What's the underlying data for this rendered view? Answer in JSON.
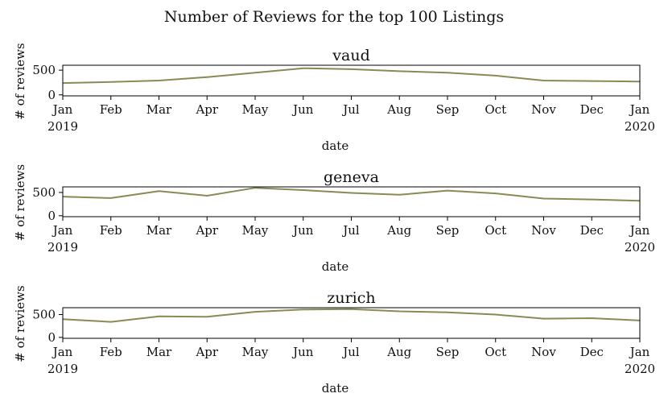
{
  "figure_title": "Number of Reviews for the top 100 Listings",
  "colors": {
    "line": "#8a8a55",
    "axes": "#000000",
    "background": "#ffffff"
  },
  "chart_data": [
    {
      "type": "line",
      "title": "vaud",
      "xlabel": "date",
      "ylabel": "# of reviews",
      "x": [
        "2019-01",
        "2019-02",
        "2019-03",
        "2019-04",
        "2019-05",
        "2019-06",
        "2019-07",
        "2019-08",
        "2019-09",
        "2019-10",
        "2019-11",
        "2019-12",
        "2020-01"
      ],
      "values": [
        240,
        260,
        290,
        360,
        450,
        540,
        520,
        480,
        450,
        390,
        290,
        280,
        270
      ],
      "xticks": [
        "Jan\n2019",
        "Feb",
        "Mar",
        "Apr",
        "May",
        "Jun",
        "Jul",
        "Aug",
        "Sep",
        "Oct",
        "Nov",
        "Dec",
        "Jan\n2020"
      ],
      "yticks": [
        0,
        500
      ],
      "ylim": [
        -20,
        600
      ],
      "grid": false
    },
    {
      "type": "line",
      "title": "geneva",
      "xlabel": "date",
      "ylabel": "# of reviews",
      "x": [
        "2019-01",
        "2019-02",
        "2019-03",
        "2019-04",
        "2019-05",
        "2019-06",
        "2019-07",
        "2019-08",
        "2019-09",
        "2019-10",
        "2019-11",
        "2019-12",
        "2020-01"
      ],
      "values": [
        410,
        380,
        530,
        430,
        600,
        550,
        490,
        450,
        540,
        480,
        370,
        350,
        320
      ],
      "xticks": [
        "Jan\n2019",
        "Feb",
        "Mar",
        "Apr",
        "May",
        "Jun",
        "Jul",
        "Aug",
        "Sep",
        "Oct",
        "Nov",
        "Dec",
        "Jan\n2020"
      ],
      "yticks": [
        0,
        500
      ],
      "ylim": [
        -20,
        620
      ],
      "grid": false
    },
    {
      "type": "line",
      "title": "zurich",
      "xlabel": "date",
      "ylabel": "# of reviews",
      "x": [
        "2019-01",
        "2019-02",
        "2019-03",
        "2019-04",
        "2019-05",
        "2019-06",
        "2019-07",
        "2019-08",
        "2019-09",
        "2019-10",
        "2019-11",
        "2019-12",
        "2020-01"
      ],
      "values": [
        400,
        340,
        460,
        450,
        560,
        610,
        620,
        570,
        550,
        500,
        410,
        420,
        370
      ],
      "xticks": [
        "Jan\n2019",
        "Feb",
        "Mar",
        "Apr",
        "May",
        "Jun",
        "Jul",
        "Aug",
        "Sep",
        "Oct",
        "Nov",
        "Dec",
        "Jan\n2020"
      ],
      "yticks": [
        0,
        500
      ],
      "ylim": [
        -20,
        650
      ],
      "grid": false
    }
  ]
}
